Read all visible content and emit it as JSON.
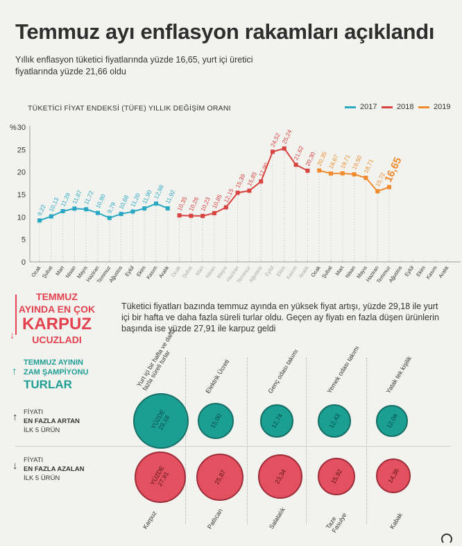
{
  "title": "Temmuz ayı enflasyon rakamları açıklandı",
  "subtitle": "Yıllık enflasyon tüketici fiyatlarında yüzde 16,65, yurt içi üretici fiyatlarında yüzde 21,66 oldu",
  "chart_title": "TÜKETİCİ FİYAT ENDEKSİ (TÜFE) YILLIK DEĞİŞİM ORANI",
  "legend": [
    {
      "label": "2017",
      "color": "#29a8c4"
    },
    {
      "label": "2018",
      "color": "#d8433f"
    },
    {
      "label": "2019",
      "color": "#f08a2c"
    }
  ],
  "chart_data": {
    "type": "line",
    "title": "TÜKETİCİ FİYAT ENDEKSİ (TÜFE) YILLIK DEĞİŞİM ORANI",
    "ylabel": "%",
    "ylim": [
      0,
      30
    ],
    "yticks": [
      "0",
      "5",
      "10",
      "15",
      "20",
      "25",
      "30"
    ],
    "grid": "vertical dotted",
    "legend_position": "top-right",
    "months": [
      "Ocak",
      "Şubat",
      "Mart",
      "Nisan",
      "Mayıs",
      "Haziran",
      "Temmuz",
      "Ağustos",
      "Eylül",
      "Ekim",
      "Kasım",
      "Aralık"
    ],
    "series": [
      {
        "name": "2017",
        "color": "#29a8c4",
        "values": [
          9.22,
          10.13,
          11.29,
          11.87,
          11.72,
          10.9,
          9.79,
          10.68,
          11.2,
          11.9,
          12.98,
          11.92
        ],
        "labels": [
          "9,22",
          "10,13",
          "11,29",
          "11,87",
          "11,72",
          "10,90",
          "9,79",
          "10,68",
          "11,20",
          "11,90",
          "12,98",
          "11,92"
        ]
      },
      {
        "name": "2018",
        "color": "#d8433f",
        "values": [
          10.35,
          10.26,
          10.23,
          10.85,
          12.15,
          15.39,
          15.85,
          17.9,
          24.52,
          25.24,
          21.62,
          20.3
        ],
        "labels": [
          "10,35",
          "10,26",
          "10,23",
          "10,85",
          "12,15",
          "15,39",
          "15,85",
          "17,90",
          "24,52",
          "25,24",
          "21,62",
          "20,30"
        ]
      },
      {
        "name": "2019",
        "color": "#f08a2c",
        "values": [
          20.35,
          19.67,
          19.71,
          19.5,
          18.71,
          15.72,
          16.65
        ],
        "labels": [
          "20,35",
          "19,67",
          "19,71",
          "19,50",
          "18,71",
          "15,72",
          "16,65"
        ]
      }
    ]
  },
  "section_a": {
    "line1": "TEMMUZ",
    "line2": "AYINDA EN ÇOK",
    "line3": "KARPUZ",
    "line4": "UCUZLADI",
    "arrow": "↓"
  },
  "paragraph": "Tüketici fiyatları bazında temmuz ayında en yüksek fiyat artışı, yüzde 29,18 ile yurt içi bir hafta ve daha fazla süreli turlar oldu. Geçen ay fiyatı en fazla düşen ürünlerin başında ise yüzde 27,91 ile karpuz geldi",
  "section_b": {
    "line1": "TEMMUZ AYININ",
    "line2": "ZAM ŞAMPİYONU",
    "line3": "TURLAR",
    "arrow": "↑"
  },
  "row_up": {
    "l1": "FİYATI",
    "l2": "EN FAZLA ARTAN",
    "l3": "İLK 5 ÜRÜN",
    "arrow": "↑"
  },
  "row_down": {
    "l1": "FİYATI",
    "l2": "EN FAZLA AZALAN",
    "l3": "İLK 5 ÜRÜN",
    "arrow": "↓"
  },
  "increase": [
    {
      "name": "Yurt içi bir hafta ve daha fazla süreli turlar",
      "value": "YÜZDE 29,18"
    },
    {
      "name": "Elektrik Ücreti",
      "value": "15,00"
    },
    {
      "name": "Genç odası takımı",
      "value": "12,74"
    },
    {
      "name": "Yemek odası takımı",
      "value": "12,43"
    },
    {
      "name": "Yatak tek kişilik",
      "value": "12,04"
    }
  ],
  "decrease": [
    {
      "name": "Karpuz",
      "value": "YÜZDE 27,91"
    },
    {
      "name": "Patlıcan",
      "value": "25,87"
    },
    {
      "name": "Salatalık",
      "value": "23,34"
    },
    {
      "name": "Taze Fasulye",
      "value": "15,92"
    },
    {
      "name": "Kabak",
      "value": "14,36"
    }
  ]
}
